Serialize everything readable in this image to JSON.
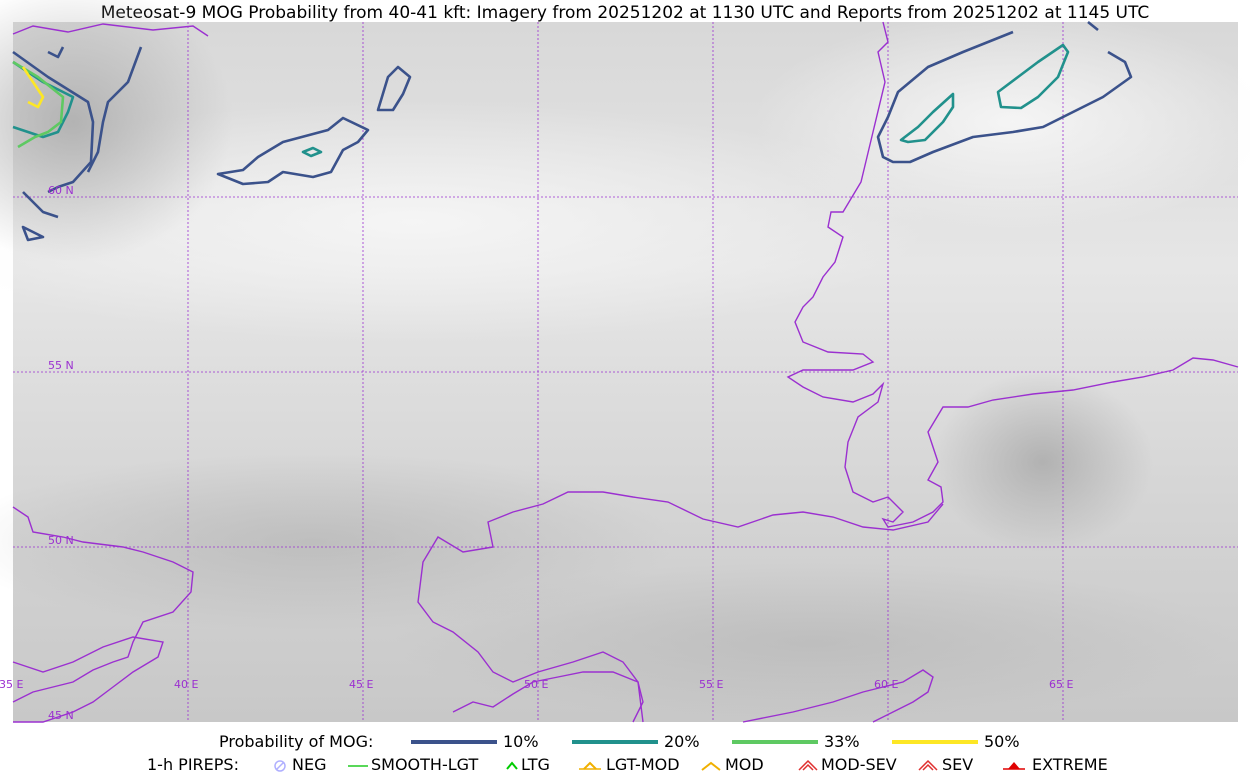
{
  "title": "Meteosat-9 MOG Probability from 40-41 kft: Imagery from 20251202 at 1130 UTC and Reports from 20251202 at 1145 UTC",
  "map": {
    "lat_labels": [
      "60 N",
      "55 N",
      "50 N",
      "45 N"
    ],
    "lon_labels": [
      "35 E",
      "40 E",
      "45 E",
      "50 E",
      "55 E",
      "60 E",
      "65 E"
    ],
    "colors": {
      "graticule": "#9b30d0",
      "coastline": "#9b30d0",
      "p10": "#3b528b",
      "p20": "#21918c",
      "p33": "#5ec962",
      "p50": "#fde725"
    }
  },
  "legend": {
    "prob_title": "Probability of MOG:",
    "prob_items": [
      {
        "label": "10%",
        "color": "#3b528b"
      },
      {
        "label": "20%",
        "color": "#21918c"
      },
      {
        "label": "33%",
        "color": "#5ec962"
      },
      {
        "label": "50%",
        "color": "#fde725"
      }
    ],
    "pirep_title": "1-h PIREPS:",
    "pirep_items": [
      {
        "label": "NEG",
        "icon": "neg-circle-icon",
        "color": "#b0b0ff"
      },
      {
        "label": "SMOOTH-LGT",
        "icon": "line-icon",
        "color": "#22cc22"
      },
      {
        "label": "LTG",
        "icon": "caret-icon",
        "color": "#00cc00"
      },
      {
        "label": "LGT-MOD",
        "icon": "caret-bar-icon",
        "color": "#f0b000"
      },
      {
        "label": "MOD",
        "icon": "caret-icon",
        "color": "#f0b000"
      },
      {
        "label": "MOD-SEV",
        "icon": "double-caret-icon",
        "color": "#e03030"
      },
      {
        "label": "SEV",
        "icon": "double-caret-icon",
        "color": "#e03030"
      },
      {
        "label": "EXTREME",
        "icon": "filled-caret-icon",
        "color": "#e00000"
      }
    ]
  }
}
